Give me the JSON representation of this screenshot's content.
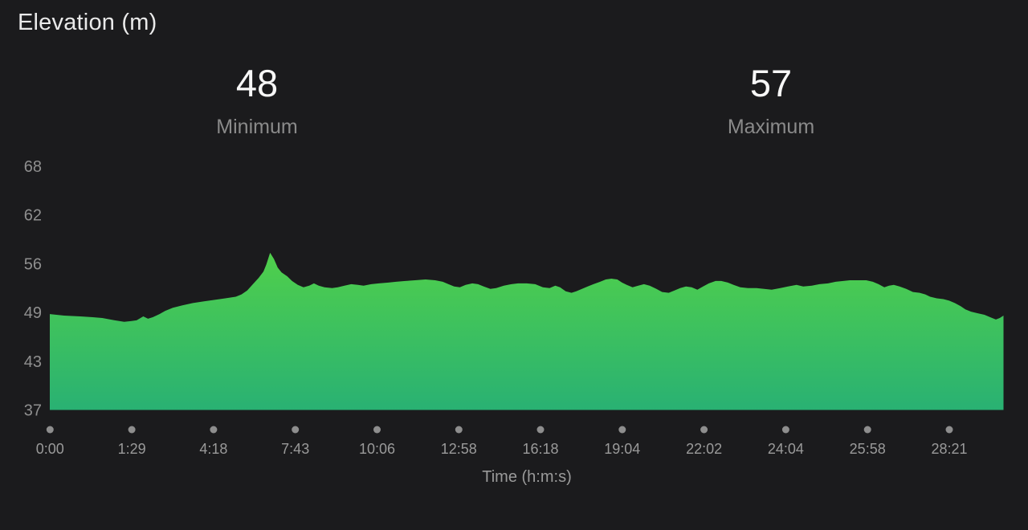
{
  "header": {
    "title": "Elevation (m)"
  },
  "stats": {
    "minimum": {
      "value": "48",
      "label": "Minimum"
    },
    "maximum": {
      "value": "57",
      "label": "Maximum"
    }
  },
  "chart_data": {
    "type": "area",
    "title": "Elevation (m)",
    "xlabel": "Time (h:m:s)",
    "ylabel": "Elevation (m)",
    "grid": false,
    "legend": "none",
    "ylim": [
      37,
      68
    ],
    "y_tick_labels": [
      68,
      62,
      56,
      49,
      43,
      37
    ],
    "x_tick_labels": [
      "0:00",
      "1:29",
      "4:18",
      "7:43",
      "10:06",
      "12:58",
      "16:18",
      "19:04",
      "22:02",
      "24:04",
      "25:58",
      "28:21"
    ],
    "minimum_m": 48,
    "maximum_m": 57,
    "colors": {
      "background": "#1b1b1d",
      "area_top": "#50d04b",
      "area_bottom": "#29b173",
      "tick_dot": "#8e8e8e",
      "x_tick_text": "#9a9a9a",
      "y_tick_text": "#8f8f8f",
      "title_text": "#eaeaea",
      "stat_value_text": "#f7f7f7",
      "stat_label_text": "#8a8a8a"
    },
    "profile": {
      "x_frac": [
        0,
        0.015,
        0.032,
        0.045,
        0.055,
        0.068,
        0.078,
        0.085,
        0.091,
        0.098,
        0.103,
        0.108,
        0.115,
        0.121,
        0.129,
        0.139,
        0.15,
        0.161,
        0.173,
        0.184,
        0.195,
        0.201,
        0.207,
        0.213,
        0.219,
        0.224,
        0.227,
        0.231,
        0.235,
        0.239,
        0.243,
        0.249,
        0.254,
        0.26,
        0.266,
        0.272,
        0.277,
        0.282,
        0.288,
        0.296,
        0.302,
        0.309,
        0.316,
        0.323,
        0.329,
        0.337,
        0.345,
        0.355,
        0.363,
        0.373,
        0.383,
        0.394,
        0.404,
        0.412,
        0.418,
        0.424,
        0.43,
        0.436,
        0.443,
        0.449,
        0.455,
        0.462,
        0.468,
        0.476,
        0.484,
        0.491,
        0.5,
        0.509,
        0.517,
        0.524,
        0.53,
        0.535,
        0.541,
        0.547,
        0.552,
        0.558,
        0.564,
        0.57,
        0.577,
        0.583,
        0.589,
        0.595,
        0.6,
        0.605,
        0.611,
        0.617,
        0.623,
        0.629,
        0.636,
        0.642,
        0.649,
        0.655,
        0.661,
        0.667,
        0.673,
        0.679,
        0.685,
        0.691,
        0.698,
        0.704,
        0.711,
        0.717,
        0.724,
        0.732,
        0.741,
        0.749,
        0.757,
        0.766,
        0.774,
        0.783,
        0.79,
        0.799,
        0.807,
        0.816,
        0.824,
        0.832,
        0.839,
        0.848,
        0.856,
        0.863,
        0.869,
        0.875,
        0.88,
        0.885,
        0.891,
        0.898,
        0.905,
        0.912,
        0.918,
        0.923,
        0.93,
        0.937,
        0.943,
        0.949,
        0.955,
        0.96,
        0.966,
        0.973,
        0.98,
        0.986,
        0.992,
        0.996,
        1.0
      ],
      "elevation_m": [
        49.2,
        49.0,
        48.9,
        48.8,
        48.7,
        48.4,
        48.2,
        48.3,
        48.4,
        48.9,
        48.6,
        48.8,
        49.2,
        49.6,
        50.0,
        50.3,
        50.6,
        50.8,
        51.0,
        51.2,
        51.4,
        51.7,
        52.2,
        53.0,
        53.8,
        54.6,
        55.5,
        57.0,
        56.2,
        55.1,
        54.5,
        54.0,
        53.4,
        52.9,
        52.6,
        52.8,
        53.1,
        52.8,
        52.6,
        52.5,
        52.6,
        52.8,
        53.0,
        52.9,
        52.8,
        53.0,
        53.1,
        53.2,
        53.3,
        53.4,
        53.5,
        53.6,
        53.5,
        53.3,
        53.0,
        52.7,
        52.6,
        52.9,
        53.1,
        53.0,
        52.7,
        52.4,
        52.5,
        52.8,
        53.0,
        53.1,
        53.1,
        53.0,
        52.6,
        52.5,
        52.8,
        52.6,
        52.1,
        51.9,
        52.1,
        52.4,
        52.7,
        53.0,
        53.3,
        53.6,
        53.7,
        53.6,
        53.2,
        52.9,
        52.6,
        52.8,
        53.0,
        52.8,
        52.4,
        52.0,
        51.9,
        52.2,
        52.5,
        52.7,
        52.6,
        52.3,
        52.7,
        53.1,
        53.4,
        53.4,
        53.2,
        52.9,
        52.6,
        52.5,
        52.5,
        52.4,
        52.3,
        52.5,
        52.7,
        52.9,
        52.7,
        52.8,
        53.0,
        53.1,
        53.3,
        53.4,
        53.5,
        53.5,
        53.5,
        53.3,
        53.0,
        52.6,
        52.8,
        52.9,
        52.7,
        52.4,
        52.0,
        51.9,
        51.7,
        51.4,
        51.2,
        51.1,
        50.9,
        50.6,
        50.2,
        49.8,
        49.5,
        49.3,
        49.1,
        48.8,
        48.5,
        48.7,
        49.0
      ]
    }
  }
}
